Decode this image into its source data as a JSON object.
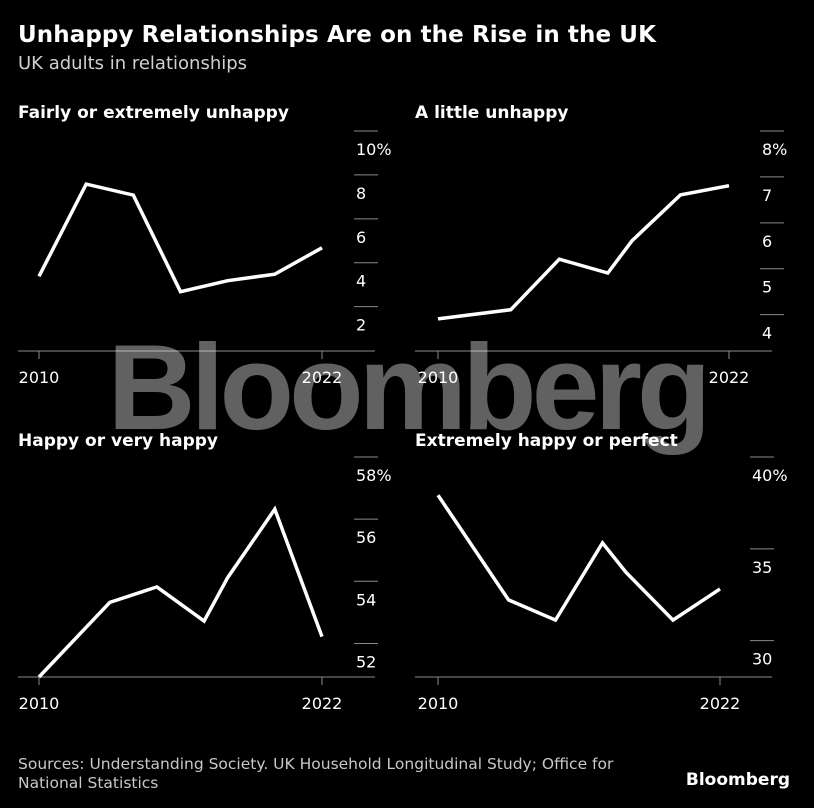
{
  "title": "Unhappy Relationships Are on the Rise in the UK",
  "subtitle": "UK adults in relationships",
  "source": "Sources: Understanding Society. UK Household Longitudinal Study; Office for National Statistics",
  "brand": "Bloomberg",
  "watermark": "Bloomberg",
  "colors": {
    "background": "#000000",
    "line": "#ffffff",
    "axis": "#8a8a8a",
    "text": "#ffffff"
  },
  "chart_data": [
    {
      "type": "line",
      "title": "Fairly or extremely unhappy",
      "x": [
        2010,
        2012,
        2014,
        2016,
        2018,
        2020,
        2022
      ],
      "x_tick_labels": [
        "2010",
        "",
        "",
        "",
        "",
        "",
        "2022"
      ],
      "values": [
        4.2,
        8.4,
        7.9,
        3.5,
        4.0,
        4.3,
        5.5
      ],
      "ylim": [
        0.8,
        10
      ],
      "y_ticks": [
        2,
        4,
        6,
        8,
        10
      ],
      "y_tick_labels": [
        "2",
        "4",
        "6",
        "8",
        "10%"
      ]
    },
    {
      "type": "line",
      "title": "A little unhappy",
      "x": [
        2010,
        2013,
        2015,
        2017,
        2018,
        2020,
        2022
      ],
      "x_tick_labels": [
        "2010",
        "",
        "",
        "",
        "",
        "",
        "2022"
      ],
      "values": [
        4.3,
        4.5,
        5.6,
        5.3,
        6.0,
        7.0,
        7.2
      ],
      "ylim": [
        3.6,
        8
      ],
      "y_ticks": [
        4,
        5,
        6,
        7,
        8
      ],
      "y_tick_labels": [
        "4",
        "5",
        "6",
        "7",
        "8%"
      ]
    },
    {
      "type": "line",
      "title": "Happy or very happy",
      "x": [
        2010,
        2013,
        2015,
        2017,
        2018,
        2020,
        2022
      ],
      "x_tick_labels": [
        "2010",
        "",
        "",
        "",
        "",
        "",
        "2022"
      ],
      "values": [
        51.5,
        53.9,
        54.4,
        53.3,
        54.7,
        56.9,
        52.8
      ],
      "ylim": [
        51.5,
        58
      ],
      "y_ticks": [
        52,
        54,
        56,
        58
      ],
      "y_tick_labels": [
        "52",
        "54",
        "56",
        "58%"
      ]
    },
    {
      "type": "line",
      "title": "Extremely happy or perfect",
      "x": [
        2010,
        2013,
        2015,
        2017,
        2018,
        2020,
        2022
      ],
      "x_tick_labels": [
        "2010",
        "",
        "",
        "",
        "",
        "",
        "2022"
      ],
      "values": [
        38.9,
        33.2,
        32.1,
        36.3,
        34.7,
        32.1,
        33.8
      ],
      "ylim": [
        29,
        40
      ],
      "y_ticks": [
        30,
        35,
        40
      ],
      "y_tick_labels": [
        "30",
        "35",
        "40%"
      ]
    }
  ]
}
